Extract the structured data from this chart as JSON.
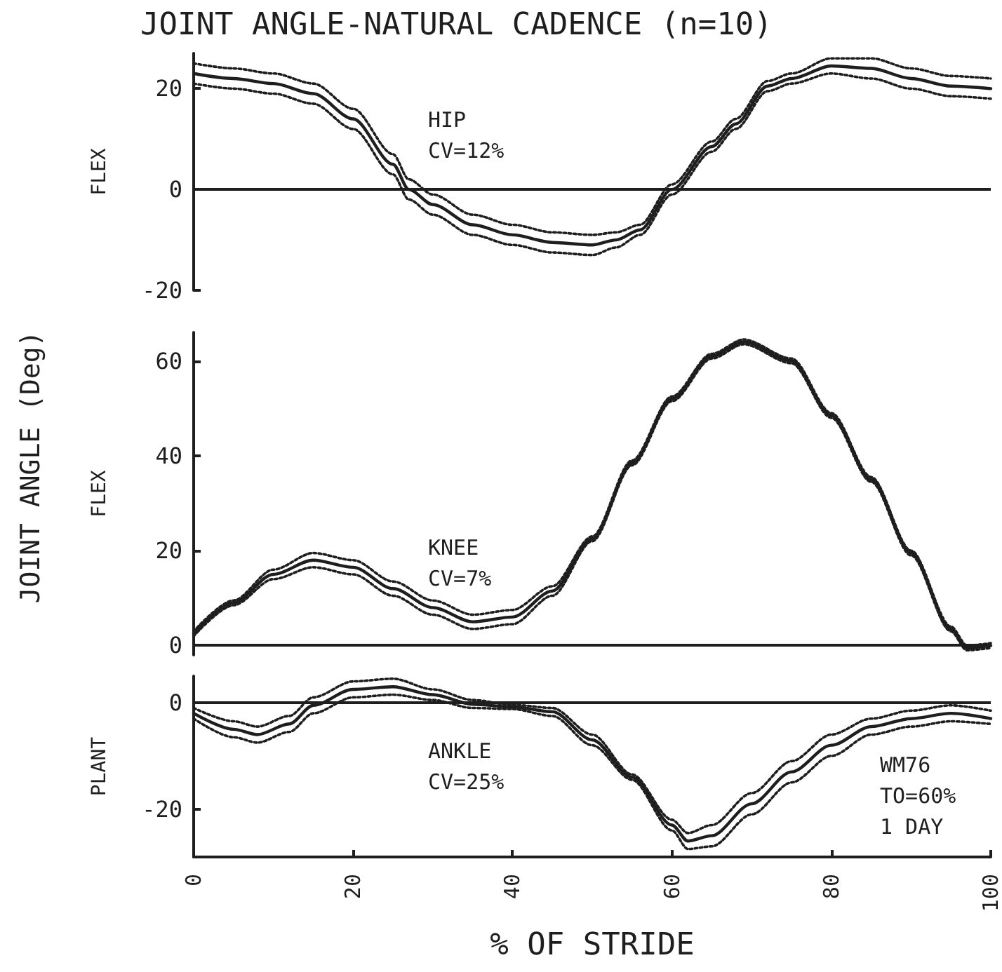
{
  "chart_data": [
    {
      "type": "line",
      "title": "JOINT ANGLE-NATURAL CADENCE (n=10)",
      "ylabel": "FLEX",
      "annotations": [
        "HIP",
        "CV=12%"
      ],
      "x": [
        0,
        5,
        10,
        15,
        20,
        25,
        27,
        30,
        35,
        40,
        45,
        50,
        53,
        56,
        60,
        65,
        68,
        72,
        75,
        80,
        85,
        90,
        95,
        100
      ],
      "series": [
        {
          "color": "#1e1e1e",
          "line_style": "solid",
          "values": [
            23,
            22,
            21,
            19,
            14,
            5,
            0,
            -3,
            -7,
            -9,
            -10.5,
            -11,
            -10,
            -8,
            0,
            8.5,
            13,
            20.5,
            22,
            24.5,
            24,
            22,
            20.5,
            20
          ]
        },
        {
          "color": "#1e1e1e",
          "line_style": "dotted",
          "values": [
            21,
            20,
            19,
            17,
            12,
            3,
            -2,
            -5,
            -9,
            -11,
            -12.5,
            -13,
            -11.5,
            -9,
            -1,
            7.5,
            12,
            19.5,
            21,
            23,
            22,
            20,
            18.5,
            18
          ]
        },
        {
          "color": "#1e1e1e",
          "line_style": "dotted",
          "values": [
            25,
            24,
            23,
            21,
            16,
            7,
            2,
            -1,
            -5,
            -7,
            -8.5,
            -9,
            -8.5,
            -7,
            1,
            9.5,
            14,
            21.5,
            23,
            26,
            26,
            24,
            22.5,
            22
          ]
        }
      ],
      "xlim": [
        0,
        100
      ],
      "ylim": [
        -20,
        27
      ],
      "yticks": [
        -20,
        0,
        20
      ],
      "ref_lines": [
        {
          "axis": "y",
          "value": 0
        }
      ],
      "tick_labels": "y"
    },
    {
      "type": "line",
      "ylabel": "FLEX",
      "annotations": [
        "KNEE",
        "CV=7%",
        "JOINT ANGLE (Deg)"
      ],
      "x": [
        0,
        5,
        10,
        15,
        20,
        25,
        30,
        35,
        40,
        45,
        50,
        55,
        60,
        65,
        69,
        75,
        80,
        85,
        90,
        95,
        97,
        100
      ],
      "series": [
        {
          "color": "#1e1e1e",
          "line_style": "solid",
          "values": [
            2.5,
            9,
            15,
            18,
            16.5,
            12,
            8,
            5,
            6,
            11.5,
            22.5,
            38.5,
            52,
            61,
            64,
            60,
            48.5,
            35,
            19.5,
            3.5,
            -0.5,
            0
          ]
        },
        {
          "color": "#1e1e1e",
          "line_style": "dotted",
          "values": [
            2,
            8.5,
            14,
            16.5,
            15,
            10.5,
            6.5,
            3.5,
            4.5,
            10.5,
            22,
            38,
            51.5,
            60.5,
            63.5,
            59.5,
            48,
            34.5,
            19,
            3,
            -1,
            -0.5
          ]
        },
        {
          "color": "#1e1e1e",
          "line_style": "dotted",
          "values": [
            3,
            9.5,
            16,
            19.5,
            18,
            13.5,
            9.5,
            6.5,
            7.5,
            12.5,
            23,
            39,
            52.5,
            61.5,
            64.5,
            60.5,
            49,
            35.5,
            20,
            4,
            0,
            0.5
          ]
        }
      ],
      "xlim": [
        0,
        100
      ],
      "ylim": [
        -2,
        66
      ],
      "yticks": [
        0,
        20,
        40,
        60
      ],
      "ref_lines": [
        {
          "axis": "y",
          "value": 0
        }
      ],
      "tick_labels": "y"
    },
    {
      "type": "line",
      "xlabel": "% OF STRIDE",
      "ylabel": "PLANT",
      "annotations": [
        "ANKLE",
        "CV=25%",
        "WM76",
        "TO=60%",
        "1 DAY"
      ],
      "x": [
        0,
        5,
        8,
        12,
        15,
        20,
        25,
        30,
        35,
        40,
        45,
        50,
        55,
        60,
        62,
        65,
        70,
        75,
        80,
        85,
        90,
        95,
        100
      ],
      "series": [
        {
          "color": "#1e1e1e",
          "line_style": "solid",
          "values": [
            -2,
            -5,
            -6,
            -4,
            -0.5,
            2.5,
            3,
            1.5,
            -0.3,
            -0.8,
            -1.7,
            -7,
            -14,
            -23,
            -26,
            -25,
            -19,
            -13,
            -8,
            -4.5,
            -3,
            -2,
            -3
          ]
        },
        {
          "color": "#1e1e1e",
          "line_style": "dotted",
          "values": [
            -3,
            -6.5,
            -7.5,
            -5.5,
            -2,
            1,
            1.5,
            0.5,
            -1,
            -1.2,
            -2.5,
            -8,
            -14.5,
            -24,
            -27.5,
            -27,
            -21,
            -15,
            -10,
            -6,
            -4.5,
            -3.5,
            -4
          ]
        },
        {
          "color": "#1e1e1e",
          "line_style": "dotted",
          "values": [
            -1,
            -3.5,
            -4.5,
            -2.5,
            1,
            4,
            4.5,
            2.5,
            0.5,
            -0.4,
            -1,
            -6,
            -13.5,
            -22,
            -24.5,
            -23,
            -17,
            -11,
            -6,
            -3,
            -1.5,
            -0.5,
            -1.5
          ]
        }
      ],
      "xlim": [
        0,
        100
      ],
      "ylim": [
        -29,
        5
      ],
      "xticks": [
        0,
        20,
        40,
        60,
        80,
        100
      ],
      "yticks": [
        -20,
        0
      ],
      "ref_lines": [
        {
          "axis": "y",
          "value": 0
        }
      ]
    }
  ]
}
